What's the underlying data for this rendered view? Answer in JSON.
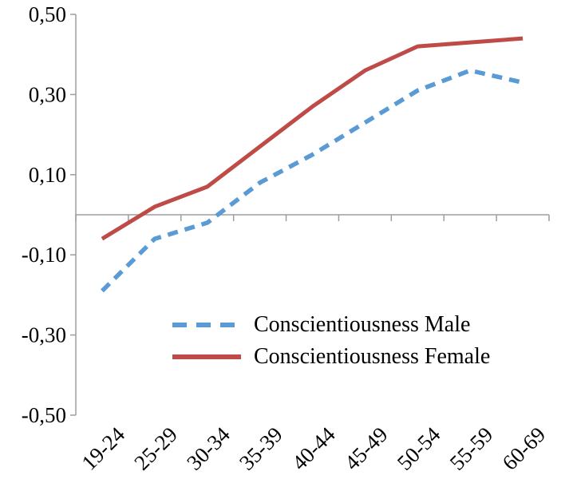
{
  "chart_data": {
    "type": "line",
    "title": "",
    "xlabel": "",
    "ylabel": "",
    "categories": [
      "19-24",
      "25-29",
      "30-34",
      "35-39",
      "40-44",
      "45-49",
      "50-54",
      "55-59",
      "60-69"
    ],
    "series": [
      {
        "name": "Conscientiousness Male",
        "color": "#5B9BD5",
        "style": "dashed",
        "values": [
          -0.19,
          -0.06,
          -0.02,
          0.08,
          0.15,
          0.23,
          0.31,
          0.36,
          0.33
        ]
      },
      {
        "name": "Conscientiousness Female",
        "color": "#BE4B48",
        "style": "solid",
        "values": [
          -0.06,
          0.02,
          0.07,
          0.17,
          0.27,
          0.36,
          0.42,
          0.43,
          0.44
        ]
      }
    ],
    "ylim": [
      -0.5,
      0.5
    ],
    "yticks": [
      0.5,
      0.3,
      0.1,
      -0.1,
      -0.3,
      -0.5
    ],
    "ytick_labels": [
      "0,50",
      "0,30",
      "0,10",
      "-0,10",
      "-0,30",
      "-0,50"
    ],
    "grid": "zero-line-only",
    "legend_position": "inside-center-left",
    "axis_color": "#9D9D9D"
  }
}
